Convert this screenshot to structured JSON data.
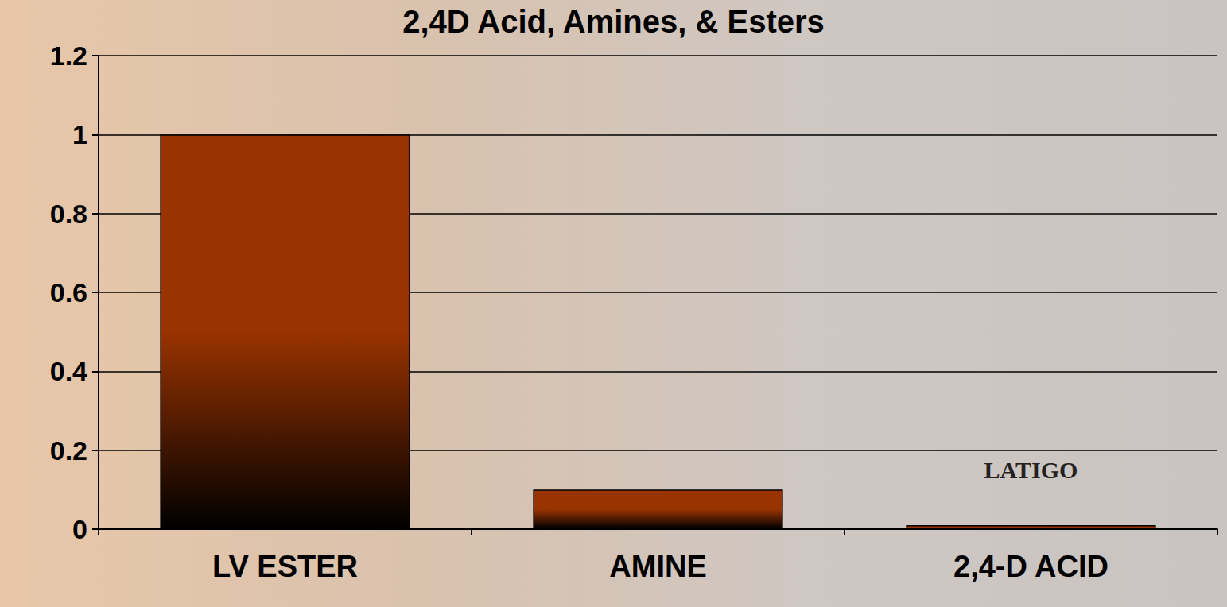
{
  "chart_data": {
    "type": "bar",
    "title": "2,4D Acid, Amines, & Esters",
    "categories": [
      "LV ESTER",
      "AMINE",
      "2,4-D ACID"
    ],
    "values": [
      1.0,
      0.1,
      0.01
    ],
    "color": "#993300",
    "ylim": [
      0,
      1.2
    ],
    "yticks": [
      0,
      0.2,
      0.4,
      0.6,
      0.8,
      1,
      1.2
    ],
    "grid": true,
    "annotations": [
      {
        "text": "LATIGO",
        "x": "2,4-D ACID",
        "y": 0.15
      }
    ]
  }
}
